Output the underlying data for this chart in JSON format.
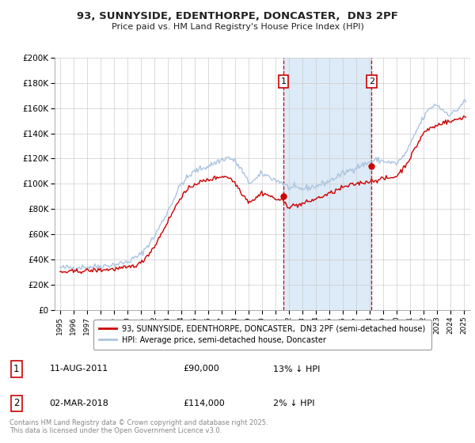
{
  "title": "93, SUNNYSIDE, EDENTHORPE, DONCASTER,  DN3 2PF",
  "subtitle": "Price paid vs. HM Land Registry's House Price Index (HPI)",
  "ylim": [
    0,
    200000
  ],
  "yticks": [
    0,
    20000,
    40000,
    60000,
    80000,
    100000,
    120000,
    140000,
    160000,
    180000,
    200000
  ],
  "ytick_labels": [
    "£0",
    "£20K",
    "£40K",
    "£60K",
    "£80K",
    "£100K",
    "£120K",
    "£140K",
    "£160K",
    "£180K",
    "£200K"
  ],
  "hpi_color": "#aac4e0",
  "price_color": "#cc0000",
  "vline_color": "#cc0000",
  "shade_color": "#ddeaf7",
  "grid_color": "#cccccc",
  "background_color": "#ffffff",
  "legend_label_price": "93, SUNNYSIDE, EDENTHORPE, DONCASTER,  DN3 2PF (semi-detached house)",
  "legend_label_hpi": "HPI: Average price, semi-detached house, Doncaster",
  "event1_label": "1",
  "event2_label": "2",
  "event1_date": "11-AUG-2011",
  "event1_price": "£90,000",
  "event1_pct": "13% ↓ HPI",
  "event2_date": "02-MAR-2018",
  "event2_price": "£114,000",
  "event2_pct": "2% ↓ HPI",
  "footer": "Contains HM Land Registry data © Crown copyright and database right 2025.\nThis data is licensed under the Open Government Licence v3.0.",
  "event1_x": 2011.6,
  "event2_x": 2018.17,
  "event1_y": 90000,
  "event2_y": 114000,
  "xmin": 1994.6,
  "xmax": 2025.5
}
